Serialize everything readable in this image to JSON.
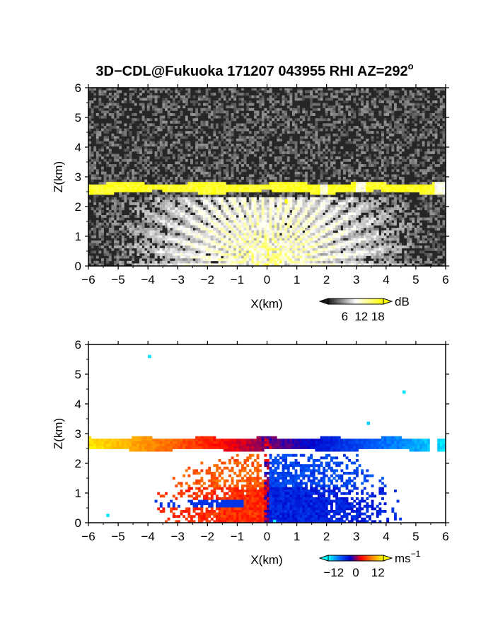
{
  "title": {
    "main": "3D−CDL@Fukuoka 171207 043955 RHI AZ=292",
    "degree_mark": "o"
  },
  "chart_data": [
    {
      "type": "heatmap",
      "quantity": "reflectivity",
      "xlabel": "X(km)",
      "ylabel": "Z(km)",
      "xlim": [
        -6,
        6
      ],
      "ylim": [
        0,
        6
      ],
      "x_ticks": [
        -6,
        -5,
        -4,
        -3,
        -2,
        -1,
        0,
        1,
        2,
        3,
        4,
        5,
        6
      ],
      "y_ticks": [
        0,
        1,
        2,
        3,
        4,
        5,
        6
      ],
      "background_color": "#262626",
      "colorbar": {
        "unit": "dB",
        "tick_labels": [
          "6",
          "12",
          "18"
        ],
        "range": [
          0,
          20
        ],
        "colors": [
          "#1a1a1a",
          "#ffffff",
          "#ffff00"
        ]
      },
      "features": [
        {
          "name": "melting-layer band",
          "z_km": [
            2.45,
            2.8
          ],
          "x_km": [
            -6,
            6
          ],
          "value_db": 19
        },
        {
          "name": "near-ground fan",
          "z_km": [
            0,
            2.3
          ],
          "value_db": 10
        }
      ]
    },
    {
      "type": "heatmap",
      "quantity": "doppler velocity",
      "xlabel": "X(km)",
      "ylabel": "Z(km)",
      "xlim": [
        -6,
        6
      ],
      "ylim": [
        0,
        6
      ],
      "x_ticks": [
        -6,
        -5,
        -4,
        -3,
        -2,
        -1,
        0,
        1,
        2,
        3,
        4,
        5,
        6
      ],
      "y_ticks": [
        0,
        1,
        2,
        3,
        4,
        5,
        6
      ],
      "background_color": "#ffffff",
      "colorbar": {
        "unit": "ms",
        "unit_exponent": "−1",
        "tick_labels": [
          "−12",
          "0",
          "12"
        ],
        "range": [
          -15,
          15
        ],
        "colors": [
          "#00ffff",
          "#0066ff",
          "#0000cc",
          "#ff0000",
          "#ff8800",
          "#ffff00"
        ]
      },
      "features": [
        {
          "name": "upper band",
          "z_km": [
            2.45,
            2.85
          ],
          "x_km": [
            -6,
            6
          ],
          "velocity_ms_at_x_minus6": 14,
          "velocity_ms_at_x_plus6": -14
        },
        {
          "name": "lower fan",
          "z_km": [
            0,
            2.3
          ],
          "velocity_left": 8,
          "velocity_right": -8
        }
      ]
    }
  ]
}
